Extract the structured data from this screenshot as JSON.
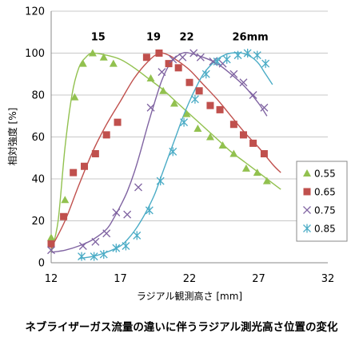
{
  "caption": "ネブライザーガス流量の違いに伴うラジアル測光高さ位置の変化",
  "chart_data": {
    "type": "scatter",
    "xlabel": "ラジアル観測高さ [mm]",
    "ylabel": "相対強度 [%]",
    "xlim": [
      12,
      32
    ],
    "ylim": [
      0,
      120
    ],
    "xticks": [
      12,
      17,
      22,
      27,
      32
    ],
    "yticks": [
      0,
      20,
      40,
      60,
      80,
      100,
      120
    ],
    "legend_position": "right",
    "annotations": [
      {
        "text": "15",
        "x": 15.4,
        "y": 108
      },
      {
        "text": "19",
        "x": 19.4,
        "y": 108
      },
      {
        "text": "22",
        "x": 21.8,
        "y": 108
      },
      {
        "text": "26mm",
        "x": 26.4,
        "y": 108
      }
    ],
    "series": [
      {
        "name": "0.55",
        "marker": "triangle",
        "color": "#92c14f",
        "points": [
          [
            12,
            12
          ],
          [
            13,
            30
          ],
          [
            13.7,
            79
          ],
          [
            14.3,
            95
          ],
          [
            15,
            100
          ],
          [
            15.8,
            98
          ],
          [
            16.5,
            95
          ],
          [
            19.2,
            88
          ],
          [
            20.1,
            82
          ],
          [
            20.9,
            76
          ],
          [
            21.8,
            71
          ],
          [
            22.6,
            64
          ],
          [
            23.5,
            60
          ],
          [
            24.4,
            56
          ],
          [
            25.2,
            52
          ],
          [
            26.1,
            45
          ],
          [
            26.9,
            43
          ],
          [
            27.6,
            39
          ]
        ],
        "curve": [
          [
            12,
            5
          ],
          [
            12.5,
            20
          ],
          [
            13,
            55
          ],
          [
            13.5,
            80
          ],
          [
            14,
            93
          ],
          [
            14.5,
            98
          ],
          [
            15,
            100
          ],
          [
            16,
            99
          ],
          [
            17,
            97
          ],
          [
            18,
            93
          ],
          [
            19,
            88
          ],
          [
            20,
            83
          ],
          [
            21,
            77
          ],
          [
            22,
            71
          ],
          [
            23,
            65
          ],
          [
            24,
            59
          ],
          [
            25,
            53
          ],
          [
            26,
            48
          ],
          [
            27,
            43
          ],
          [
            28,
            38
          ],
          [
            28.6,
            35
          ]
        ]
      },
      {
        "name": "0.65",
        "marker": "square",
        "color": "#c0504d",
        "points": [
          [
            12,
            9
          ],
          [
            12.9,
            22
          ],
          [
            13.6,
            43
          ],
          [
            14.4,
            46
          ],
          [
            15.2,
            52
          ],
          [
            16,
            61
          ],
          [
            16.8,
            67
          ],
          [
            18.9,
            98
          ],
          [
            19.8,
            100
          ],
          [
            20.5,
            95
          ],
          [
            21.2,
            93
          ],
          [
            22,
            86
          ],
          [
            22.7,
            82
          ],
          [
            23.5,
            75
          ],
          [
            24.2,
            73
          ],
          [
            25.2,
            66
          ],
          [
            25.9,
            61
          ],
          [
            26.6,
            57
          ],
          [
            27.4,
            52
          ]
        ],
        "curve": [
          [
            12,
            7
          ],
          [
            13,
            20
          ],
          [
            14,
            37
          ],
          [
            15,
            53
          ],
          [
            16,
            66
          ],
          [
            17,
            77
          ],
          [
            18,
            88
          ],
          [
            19,
            96
          ],
          [
            19.8,
            100
          ],
          [
            20.5,
            99
          ],
          [
            21,
            97
          ],
          [
            22,
            92
          ],
          [
            23,
            85
          ],
          [
            24,
            78
          ],
          [
            25,
            70
          ],
          [
            26,
            62
          ],
          [
            27,
            55
          ],
          [
            28,
            47
          ],
          [
            28.6,
            43
          ]
        ]
      },
      {
        "name": "0.75",
        "marker": "x",
        "color": "#8064a2",
        "points": [
          [
            12,
            6
          ],
          [
            14.3,
            8
          ],
          [
            15.2,
            10
          ],
          [
            16,
            14
          ],
          [
            16.7,
            24
          ],
          [
            17.5,
            23
          ],
          [
            18.3,
            36
          ],
          [
            19.2,
            74
          ],
          [
            20,
            91
          ],
          [
            20.8,
            97
          ],
          [
            21.5,
            98
          ],
          [
            22.3,
            100
          ],
          [
            22.8,
            98
          ],
          [
            23.7,
            96
          ],
          [
            24.4,
            95
          ],
          [
            25.2,
            90
          ],
          [
            25.9,
            86
          ],
          [
            26.6,
            80
          ],
          [
            27.4,
            74
          ]
        ],
        "curve": [
          [
            12,
            5
          ],
          [
            13,
            6
          ],
          [
            14,
            8
          ],
          [
            15,
            11
          ],
          [
            16,
            16
          ],
          [
            16.5,
            21
          ],
          [
            17,
            27
          ],
          [
            17.5,
            34
          ],
          [
            18,
            43
          ],
          [
            18.5,
            54
          ],
          [
            19,
            66
          ],
          [
            19.5,
            77
          ],
          [
            20,
            87
          ],
          [
            20.5,
            94
          ],
          [
            21,
            98
          ],
          [
            21.5,
            100
          ],
          [
            22,
            100
          ],
          [
            23,
            98
          ],
          [
            24,
            95
          ],
          [
            25,
            90
          ],
          [
            26,
            84
          ],
          [
            27,
            76
          ],
          [
            27.6,
            70
          ]
        ]
      },
      {
        "name": "0.85",
        "marker": "asterisk",
        "color": "#4bacc6",
        "points": [
          [
            14.2,
            3
          ],
          [
            15.1,
            3
          ],
          [
            15.8,
            4
          ],
          [
            16.7,
            7
          ],
          [
            17.4,
            8
          ],
          [
            18.2,
            13
          ],
          [
            19.1,
            25
          ],
          [
            19.9,
            39
          ],
          [
            20.8,
            53
          ],
          [
            21.6,
            67
          ],
          [
            22.4,
            78
          ],
          [
            23.2,
            90
          ],
          [
            24,
            96
          ],
          [
            24.7,
            97
          ],
          [
            25.5,
            99
          ],
          [
            26.2,
            100
          ],
          [
            26.9,
            99
          ],
          [
            27.5,
            95
          ]
        ],
        "curve": [
          [
            14,
            2
          ],
          [
            15,
            3
          ],
          [
            16,
            5
          ],
          [
            17,
            8
          ],
          [
            17.5,
            11
          ],
          [
            18,
            15
          ],
          [
            18.5,
            20
          ],
          [
            19,
            26
          ],
          [
            19.5,
            33
          ],
          [
            20,
            42
          ],
          [
            20.5,
            51
          ],
          [
            21,
            60
          ],
          [
            21.5,
            69
          ],
          [
            22,
            77
          ],
          [
            22.5,
            84
          ],
          [
            23,
            90
          ],
          [
            23.5,
            94
          ],
          [
            24,
            97
          ],
          [
            24.5,
            99
          ],
          [
            25,
            100
          ],
          [
            25.8,
            100
          ],
          [
            26.5,
            98
          ],
          [
            27,
            95
          ],
          [
            27.5,
            90
          ],
          [
            28,
            85
          ]
        ]
      }
    ]
  }
}
